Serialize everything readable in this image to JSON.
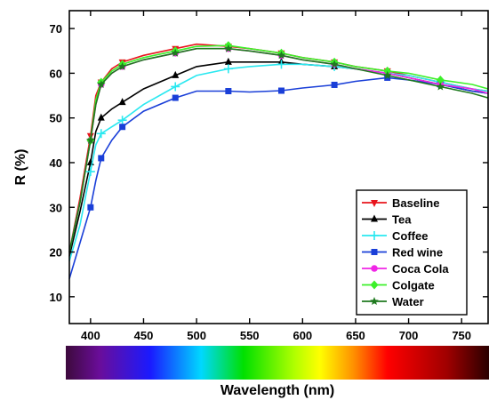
{
  "chart_data": {
    "type": "line",
    "title": "",
    "xlabel": "Wavelength (nm)",
    "ylabel": "R (%)",
    "xlim": [
      380,
      775
    ],
    "ylim": [
      4,
      74
    ],
    "x_ticks": [
      400,
      450,
      500,
      550,
      600,
      650,
      700,
      750
    ],
    "y_ticks": [
      10,
      20,
      30,
      40,
      50,
      60,
      70
    ],
    "grid": false,
    "legend_position": "bottom-right",
    "colorbar": "visible spectrum gradient below x-axis (violet to dark red)",
    "series": [
      {
        "name": "Baseline",
        "color": "#e8141c",
        "marker": "triangle-down",
        "x": [
          380,
          390,
          400,
          405,
          410,
          420,
          430,
          450,
          480,
          500,
          530,
          550,
          580,
          600,
          630,
          650,
          680,
          700,
          730,
          760,
          775
        ],
        "y": [
          20,
          32,
          46,
          55,
          58,
          61,
          62.5,
          64,
          65.5,
          66.5,
          66,
          65.5,
          64.5,
          63.5,
          62.5,
          61.5,
          60.5,
          59.5,
          58,
          56.5,
          56
        ]
      },
      {
        "name": "Tea",
        "color": "#000000",
        "marker": "triangle-up",
        "x": [
          380,
          390,
          400,
          405,
          410,
          420,
          430,
          450,
          480,
          500,
          530,
          550,
          580,
          600,
          630,
          650,
          680,
          700,
          730,
          760,
          775
        ],
        "y": [
          19,
          29,
          40,
          47,
          50,
          52,
          53.5,
          56.5,
          59.5,
          61.5,
          62.5,
          62.5,
          62.5,
          62,
          61.5,
          61,
          60,
          59,
          57.5,
          56,
          55.5
        ]
      },
      {
        "name": "Coffee",
        "color": "#2ae8f0",
        "marker": "plus",
        "x": [
          380,
          390,
          400,
          405,
          410,
          420,
          430,
          450,
          480,
          500,
          530,
          550,
          580,
          600,
          630,
          650,
          680,
          700,
          730,
          760,
          775
        ],
        "y": [
          18,
          26,
          38,
          44,
          46.5,
          48,
          49.5,
          53,
          57,
          59.5,
          61,
          61.5,
          62,
          62,
          61.5,
          61,
          60,
          59.5,
          58,
          56.5,
          56
        ]
      },
      {
        "name": "Red wine",
        "color": "#1a3fd8",
        "marker": "square",
        "x": [
          380,
          390,
          400,
          405,
          410,
          420,
          430,
          450,
          480,
          500,
          530,
          550,
          580,
          600,
          630,
          650,
          680,
          700,
          730,
          760,
          775
        ],
        "y": [
          14,
          22,
          30,
          36,
          41,
          45,
          48,
          51.5,
          54.5,
          56,
          56,
          55.8,
          56.1,
          56.7,
          57.4,
          58.2,
          59,
          58.5,
          57.5,
          56,
          55.5
        ]
      },
      {
        "name": "Coca Cola",
        "color": "#f026e6",
        "marker": "circle",
        "x": [
          380,
          390,
          400,
          405,
          410,
          420,
          430,
          450,
          480,
          500,
          530,
          550,
          580,
          600,
          630,
          650,
          680,
          700,
          730,
          760,
          775
        ],
        "y": [
          20,
          31,
          45,
          53,
          57.5,
          60,
          61.5,
          63,
          64.5,
          65.5,
          65.5,
          65,
          64,
          63,
          62,
          61,
          60,
          59,
          57.5,
          56.5,
          55.5
        ]
      },
      {
        "name": "Colgate",
        "color": "#3cf02a",
        "marker": "diamond",
        "x": [
          380,
          390,
          400,
          405,
          410,
          420,
          430,
          450,
          480,
          500,
          530,
          550,
          580,
          600,
          630,
          650,
          680,
          700,
          730,
          760,
          775
        ],
        "y": [
          20,
          31,
          45,
          54,
          58,
          60.5,
          62,
          63.5,
          65,
          66,
          66.2,
          65.5,
          64.5,
          63.5,
          62.5,
          61.5,
          60.5,
          60,
          58.5,
          57.5,
          56.5
        ]
      },
      {
        "name": "Water",
        "color": "#1f7a1f",
        "marker": "star",
        "x": [
          380,
          390,
          400,
          405,
          410,
          420,
          430,
          450,
          480,
          500,
          530,
          550,
          580,
          600,
          630,
          650,
          680,
          700,
          730,
          760,
          775
        ],
        "y": [
          20,
          31,
          45,
          53,
          57.5,
          60,
          61.5,
          63,
          64.5,
          65.5,
          65.5,
          65,
          64,
          63,
          62,
          61,
          59.5,
          58.5,
          57,
          55.5,
          54.5
        ]
      }
    ]
  }
}
